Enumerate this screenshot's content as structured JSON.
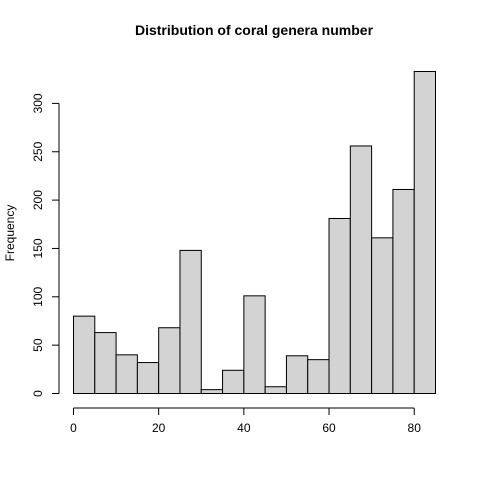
{
  "chart_data": {
    "type": "bar",
    "title": "Distribution of coral genera number",
    "xlabel": "",
    "ylabel": "Frequency",
    "bin_edges": [
      0,
      5,
      10,
      15,
      20,
      25,
      30,
      35,
      40,
      45,
      50,
      55,
      60,
      65,
      70,
      75,
      80,
      85
    ],
    "values": [
      80,
      63,
      40,
      32,
      68,
      148,
      4,
      24,
      101,
      7,
      39,
      35,
      181,
      256,
      161,
      211,
      333
    ],
    "xlim": [
      0,
      85
    ],
    "ylim": [
      0,
      333
    ],
    "x_ticks": [
      0,
      20,
      40,
      60,
      80
    ],
    "y_ticks": [
      0,
      50,
      100,
      150,
      200,
      250,
      300
    ],
    "grid": false,
    "bar_color": "#d3d3d3",
    "border_color": "#000000"
  }
}
